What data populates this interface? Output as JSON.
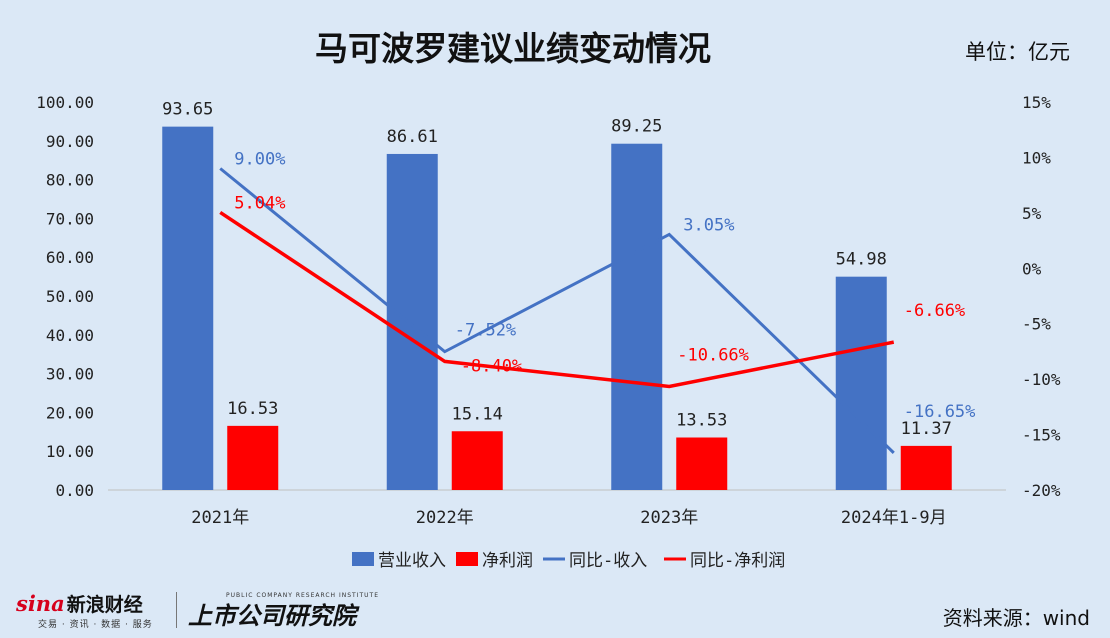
{
  "title": "马可波罗建议业绩变动情况",
  "unit_label": "单位：亿元",
  "source_label": "资料来源：wind",
  "brand": {
    "sina": "sina",
    "sina_name": "新浪财经",
    "sina_sub": "交易 · 资讯 · 数据 · 服务",
    "institute": "上市公司研究院",
    "institute_en": "PUBLIC COMPANY RESEARCH INSTITUTE"
  },
  "chart_data": {
    "type": "bar",
    "categories": [
      "2021年",
      "2022年",
      "2023年",
      "2024年1-9月"
    ],
    "series": [
      {
        "name": "营业收入",
        "type": "bar",
        "axis": "left",
        "color": "#4472c4",
        "values": [
          93.65,
          86.61,
          89.25,
          54.98
        ],
        "labels": [
          "93.65",
          "86.61",
          "89.25",
          "54.98"
        ]
      },
      {
        "name": "净利润",
        "type": "bar",
        "axis": "left",
        "color": "#ff0000",
        "values": [
          16.53,
          15.14,
          13.53,
          11.37
        ],
        "labels": [
          "16.53",
          "15.14",
          "13.53",
          "11.37"
        ]
      },
      {
        "name": "同比-收入",
        "type": "line",
        "axis": "right",
        "color": "#4472c4",
        "values": [
          9.0,
          -7.52,
          3.05,
          -16.65
        ],
        "labels": [
          "9.00%",
          "-7.52%",
          "3.05%",
          "-16.65%"
        ]
      },
      {
        "name": "同比-净利润",
        "type": "line",
        "axis": "right",
        "color": "#ff0000",
        "values": [
          5.04,
          -8.4,
          -10.66,
          -6.66
        ],
        "labels": [
          "5.04%",
          "-8.40%",
          "-10.66%",
          "-6.66%"
        ]
      }
    ],
    "y_left": {
      "min": 0,
      "max": 100,
      "step": 10,
      "ticks": [
        "0.00",
        "10.00",
        "20.00",
        "30.00",
        "40.00",
        "50.00",
        "60.00",
        "70.00",
        "80.00",
        "90.00",
        "100.00"
      ]
    },
    "y_right": {
      "min": -20,
      "max": 15,
      "step": 5,
      "ticks": [
        "-20%",
        "-15%",
        "-10%",
        "-5%",
        "0%",
        "5%",
        "10%",
        "15%"
      ]
    },
    "legend_position": "bottom",
    "grid": false
  }
}
